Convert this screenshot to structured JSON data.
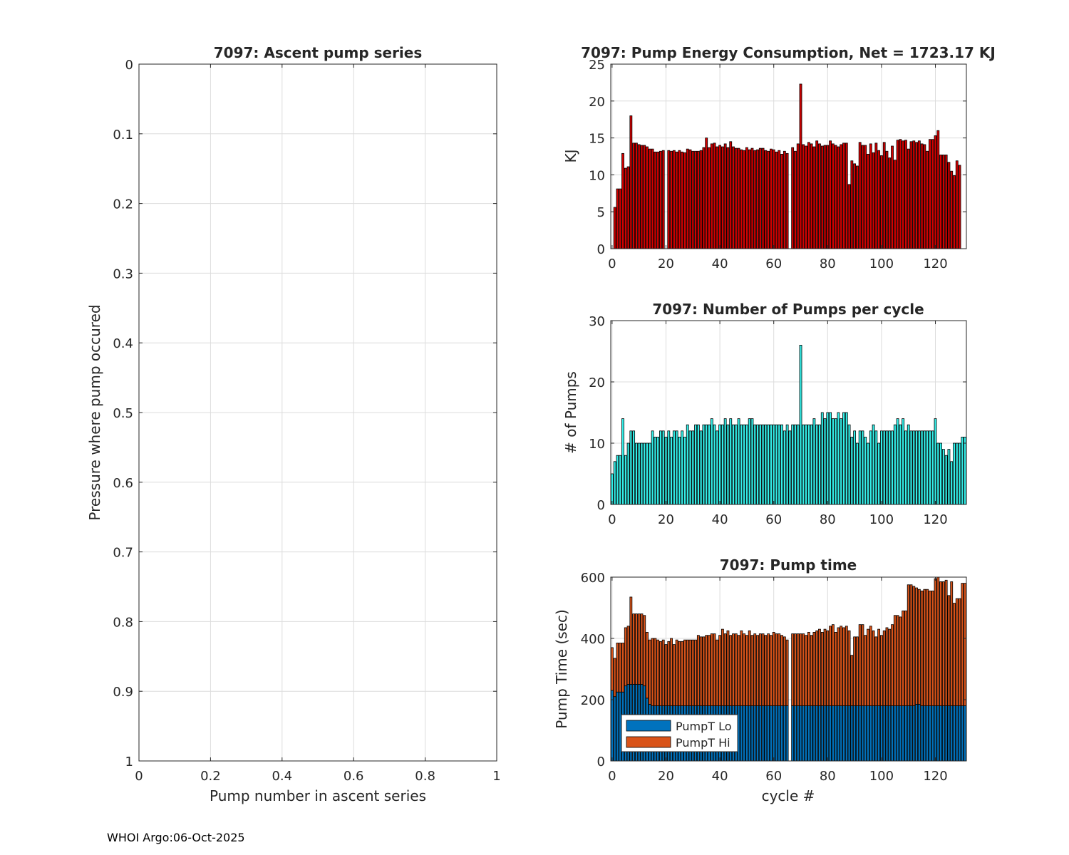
{
  "footer": "WHOI Argo:06-Oct-2025",
  "colors": {
    "energy_bar": "#d40000",
    "pumps_bar": "#33f0ea",
    "pumpt_lo": "#0072bd",
    "pumpt_hi": "#d95319",
    "grid": "#dcdcdc",
    "axis": "#262626"
  },
  "chart_data": [
    {
      "id": "ascent",
      "type": "scatter",
      "title": "7097: Ascent pump series",
      "xlabel": "Pump number in ascent series",
      "ylabel": "Pressure where pump occured",
      "xlim": [
        0,
        1
      ],
      "ylim": [
        0,
        1
      ],
      "y_reversed": true,
      "grid": true,
      "xticks": [
        0,
        0.2,
        0.4,
        0.6,
        0.8,
        1
      ],
      "xtick_labels": [
        "0",
        "0.2",
        "0.4",
        "0.6",
        "0.8",
        "1"
      ],
      "yticks": [
        0,
        0.1,
        0.2,
        0.3,
        0.4,
        0.5,
        0.6,
        0.7,
        0.8,
        0.9,
        1
      ],
      "ytick_labels": [
        "0",
        "0.1",
        "0.2",
        "0.3",
        "0.4",
        "0.5",
        "0.6",
        "0.7",
        "0.8",
        "0.9",
        "1"
      ],
      "series": []
    },
    {
      "id": "energy",
      "type": "bar",
      "title": "7097: Pump Energy Consumption,  Net = 1723.17 KJ",
      "xlabel": "",
      "ylabel": "KJ",
      "xlim": [
        -0.5,
        131.5
      ],
      "ylim": [
        0,
        25
      ],
      "grid": true,
      "xticks": [
        0,
        20,
        40,
        60,
        80,
        100,
        120
      ],
      "xtick_labels": [
        "0",
        "20",
        "40",
        "60",
        "80",
        "100",
        "120"
      ],
      "yticks": [
        0,
        5,
        10,
        15,
        20,
        25
      ],
      "ytick_labels": [
        "0",
        "5",
        "10",
        "15",
        "20",
        "25"
      ],
      "x_start": 0,
      "values": [
        null,
        5.6,
        8.1,
        8.1,
        12.9,
        10.9,
        11.1,
        18.0,
        14.3,
        14.3,
        14.1,
        14.0,
        14.0,
        13.8,
        13.5,
        13.5,
        13.1,
        13.1,
        13.2,
        13.3,
        null,
        13.3,
        13.2,
        13.3,
        13.1,
        13.3,
        13.1,
        13.0,
        13.5,
        13.4,
        13.2,
        13.2,
        13.2,
        13.3,
        13.7,
        15.0,
        13.7,
        14.2,
        14.3,
        13.8,
        14.0,
        13.8,
        14.2,
        13.7,
        14.5,
        13.8,
        13.6,
        13.6,
        13.4,
        13.3,
        13.7,
        13.4,
        13.6,
        13.3,
        13.4,
        13.6,
        13.6,
        13.3,
        13.2,
        13.5,
        13.4,
        13.1,
        13.3,
        12.8,
        13.2,
        12.9,
        null,
        13.7,
        13.2,
        14.2,
        22.3,
        14.1,
        13.9,
        14.4,
        14.2,
        13.8,
        14.6,
        14.2,
        13.9,
        14.0,
        14.0,
        14.6,
        14.2,
        14.0,
        13.8,
        14.1,
        14.3,
        14.3,
        8.7,
        11.9,
        11.5,
        11.2,
        14.4,
        14.0,
        14.0,
        12.8,
        14.2,
        13.0,
        14.3,
        13.3,
        12.6,
        14.4,
        13.2,
        12.3,
        13.9,
        12.0,
        14.7,
        14.8,
        14.6,
        14.7,
        13.5,
        14.5,
        14.6,
        14.4,
        14.6,
        14.2,
        14.1,
        13.2,
        14.8,
        14.8,
        15.3,
        16.0,
        12.7,
        12.7,
        12.7,
        11.7,
        10.5,
        9.9,
        11.9,
        11.3
      ]
    },
    {
      "id": "pumps",
      "type": "bar",
      "title": "7097: Number of Pumps per cycle",
      "xlabel": "",
      "ylabel": "# of Pumps",
      "xlim": [
        -0.5,
        131.5
      ],
      "ylim": [
        0,
        30
      ],
      "grid": true,
      "xticks": [
        0,
        20,
        40,
        60,
        80,
        100,
        120
      ],
      "xtick_labels": [
        "0",
        "20",
        "40",
        "60",
        "80",
        "100",
        "120"
      ],
      "yticks": [
        0,
        10,
        20,
        30
      ],
      "ytick_labels": [
        "0",
        "10",
        "20",
        "30"
      ],
      "x_start": 0,
      "values": [
        5,
        7,
        8,
        8,
        14,
        8,
        10,
        12,
        12,
        10,
        10,
        10,
        10,
        10,
        10,
        12,
        11,
        11,
        12,
        12,
        11,
        12,
        11,
        12,
        12,
        11,
        12,
        11,
        13,
        12,
        12,
        13,
        13,
        12,
        13,
        13,
        13,
        14,
        13,
        12,
        13,
        13,
        14,
        13,
        14,
        13,
        13,
        14,
        13,
        13,
        13,
        14,
        14,
        13,
        13,
        13,
        13,
        13,
        13,
        13,
        13,
        13,
        13,
        13,
        12,
        13,
        12,
        13,
        13,
        13,
        26,
        13,
        13,
        13,
        13,
        14,
        13,
        13,
        15,
        14,
        15,
        15,
        14,
        14,
        15,
        14,
        15,
        15,
        13,
        11,
        12,
        10,
        12,
        12,
        11,
        10,
        12,
        13,
        12,
        10,
        12,
        12,
        12,
        12,
        12,
        13,
        14,
        13,
        14,
        12,
        13,
        12,
        12,
        12,
        12,
        12,
        12,
        12,
        12,
        12,
        14,
        10,
        10,
        9,
        8,
        9,
        7,
        10,
        10,
        10,
        11,
        11
      ]
    },
    {
      "id": "pumptime",
      "type": "bar",
      "stacked": true,
      "title": "7097: Pump time",
      "xlabel": "cycle #",
      "ylabel": "Pump Time (sec)",
      "xlim": [
        -0.5,
        131.5
      ],
      "ylim": [
        0,
        600
      ],
      "grid": true,
      "legend": "lower-left",
      "xticks": [
        0,
        20,
        40,
        60,
        80,
        100,
        120
      ],
      "xtick_labels": [
        "0",
        "20",
        "40",
        "60",
        "80",
        "100",
        "120"
      ],
      "yticks": [
        0,
        200,
        400,
        600
      ],
      "ytick_labels": [
        "0",
        "200",
        "400",
        "600"
      ],
      "x_start": 0,
      "series": [
        {
          "name": "PumpT Lo",
          "values": [
            230,
            210,
            225,
            225,
            225,
            245,
            250,
            250,
            250,
            250,
            250,
            250,
            245,
            205,
            185,
            180,
            180,
            180,
            180,
            180,
            180,
            180,
            180,
            180,
            180,
            180,
            180,
            180,
            180,
            180,
            180,
            180,
            180,
            180,
            180,
            180,
            180,
            180,
            180,
            180,
            180,
            180,
            180,
            180,
            180,
            180,
            180,
            180,
            180,
            180,
            180,
            180,
            180,
            180,
            180,
            180,
            180,
            180,
            180,
            180,
            180,
            180,
            180,
            180,
            180,
            180,
            null,
            180,
            180,
            180,
            180,
            180,
            180,
            180,
            180,
            180,
            180,
            180,
            180,
            180,
            180,
            180,
            180,
            180,
            180,
            180,
            180,
            180,
            180,
            180,
            180,
            180,
            180,
            180,
            180,
            180,
            180,
            180,
            180,
            180,
            180,
            180,
            180,
            180,
            180,
            180,
            180,
            180,
            180,
            180,
            180,
            180,
            180,
            185,
            185,
            180,
            180,
            180,
            180,
            180,
            180,
            180,
            180,
            180,
            180,
            180,
            180,
            180,
            180,
            180,
            180,
            180
          ]
        },
        {
          "name": "PumpT Hi",
          "values": [
            140,
            125,
            160,
            160,
            160,
            190,
            190,
            285,
            230,
            230,
            230,
            230,
            230,
            215,
            210,
            220,
            220,
            215,
            210,
            215,
            200,
            210,
            220,
            200,
            215,
            210,
            210,
            215,
            215,
            215,
            215,
            215,
            230,
            225,
            225,
            230,
            230,
            235,
            235,
            215,
            230,
            250,
            235,
            245,
            230,
            235,
            235,
            230,
            245,
            235,
            230,
            245,
            230,
            235,
            230,
            235,
            235,
            230,
            235,
            230,
            240,
            235,
            235,
            230,
            225,
            215,
            null,
            235,
            235,
            235,
            235,
            235,
            230,
            240,
            230,
            240,
            245,
            250,
            240,
            250,
            245,
            260,
            265,
            240,
            255,
            260,
            255,
            260,
            245,
            165,
            225,
            225,
            265,
            265,
            230,
            250,
            260,
            245,
            225,
            250,
            230,
            245,
            255,
            250,
            265,
            295,
            295,
            290,
            310,
            310,
            395,
            395,
            390,
            380,
            375,
            375,
            380,
            380,
            375,
            375,
            415,
            420,
            405,
            405,
            410,
            360,
            405,
            335,
            350,
            350,
            400,
            400
          ]
        }
      ]
    }
  ]
}
